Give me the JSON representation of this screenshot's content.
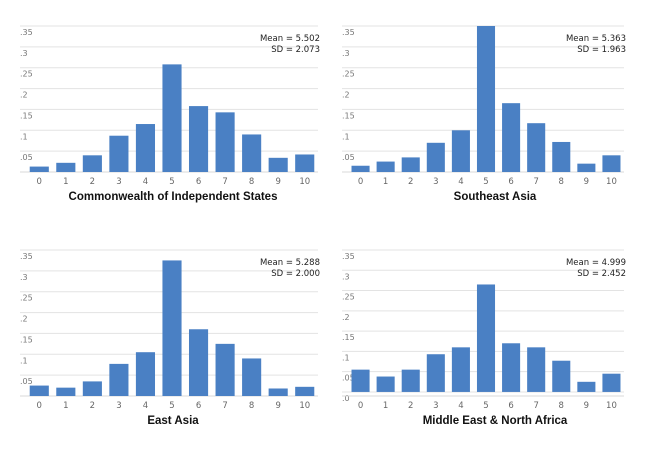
{
  "chart_data": [
    {
      "type": "bar",
      "title": "Commonwealth of Independent States",
      "categories": [
        "0",
        "1",
        "2",
        "3",
        "4",
        "5",
        "6",
        "7",
        "8",
        "9",
        "10"
      ],
      "values": [
        0.013,
        0.022,
        0.04,
        0.087,
        0.115,
        0.258,
        0.158,
        0.143,
        0.09,
        0.034,
        0.042
      ],
      "ylim": [
        0,
        0.35
      ],
      "yticks": [
        ".05",
        ".1",
        ".15",
        ".2",
        ".25",
        ".3",
        ".35"
      ],
      "annotation": {
        "mean": "Mean = 5.502",
        "sd": "SD = 2.073"
      },
      "color": "#4a80c4",
      "grid": true
    },
    {
      "type": "bar",
      "title": "Southeast Asia",
      "categories": [
        "0",
        "1",
        "2",
        "3",
        "4",
        "5",
        "6",
        "7",
        "8",
        "9",
        "10"
      ],
      "values": [
        0.015,
        0.025,
        0.035,
        0.07,
        0.1,
        0.35,
        0.165,
        0.117,
        0.072,
        0.02,
        0.04
      ],
      "ylim": [
        0,
        0.35
      ],
      "yticks": [
        ".05",
        ".1",
        ".15",
        ".2",
        ".25",
        ".3",
        ".35"
      ],
      "annotation": {
        "mean": "Mean = 5.363",
        "sd": "SD = 1.963"
      },
      "color": "#4a80c4",
      "grid": true
    },
    {
      "type": "bar",
      "title": "East Asia",
      "categories": [
        "0",
        "1",
        "2",
        "3",
        "4",
        "5",
        "6",
        "7",
        "8",
        "9",
        "10"
      ],
      "values": [
        0.025,
        0.02,
        0.035,
        0.077,
        0.105,
        0.325,
        0.16,
        0.125,
        0.09,
        0.018,
        0.022
      ],
      "ylim": [
        0,
        0.35
      ],
      "yticks": [
        ".05",
        ".1",
        ".15",
        ".2",
        ".25",
        ".3",
        ".35"
      ],
      "annotation": {
        "mean": "Mean = 5.288",
        "sd": "SD = 2.000"
      },
      "color": "#4a80c4",
      "grid": true
    },
    {
      "type": "bar",
      "title": "Middle East & North Africa",
      "categories": [
        "0",
        "1",
        "2",
        "3",
        "4",
        "5",
        "6",
        "7",
        "8",
        "9",
        "10"
      ],
      "values": [
        0.055,
        0.038,
        0.055,
        0.093,
        0.11,
        0.265,
        0.12,
        0.11,
        0.077,
        0.025,
        0.045
      ],
      "ylim": [
        -0.01,
        0.35
      ],
      "yticks": [
        ".0",
        ".05",
        ".1",
        ".15",
        ".2",
        ".25",
        ".3",
        ".35"
      ],
      "annotation": {
        "mean": "Mean = 4.999",
        "sd": "SD = 2.452"
      },
      "color": "#4a80c4",
      "grid": true
    }
  ]
}
